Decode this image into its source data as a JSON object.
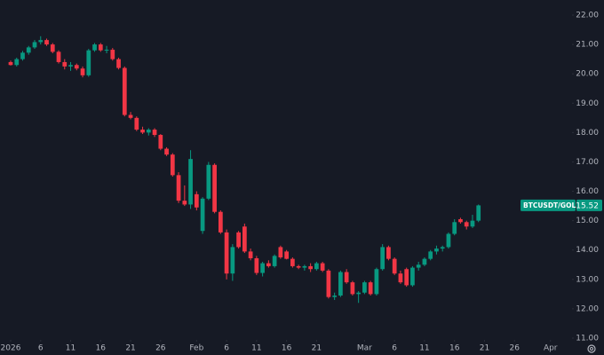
{
  "chart_data": {
    "type": "candlestick",
    "x": [
      "2026-01-01",
      "2026-01-02",
      "2026-01-03",
      "2026-01-04",
      "2026-01-05",
      "2026-01-06",
      "2026-01-07",
      "2026-01-08",
      "2026-01-09",
      "2026-01-10",
      "2026-01-11",
      "2026-01-12",
      "2026-01-13",
      "2026-01-14",
      "2026-01-15",
      "2026-01-16",
      "2026-01-17",
      "2026-01-18",
      "2026-01-19",
      "2026-01-20",
      "2026-01-21",
      "2026-01-22",
      "2026-01-23",
      "2026-01-24",
      "2026-01-25",
      "2026-01-26",
      "2026-01-27",
      "2026-01-28",
      "2026-01-29",
      "2026-01-30",
      "2026-01-31",
      "2026-02-01",
      "2026-02-02",
      "2026-02-03",
      "2026-02-04",
      "2026-02-05",
      "2026-02-06",
      "2026-02-07",
      "2026-02-08",
      "2026-02-09",
      "2026-02-10",
      "2026-02-11",
      "2026-02-12",
      "2026-02-13",
      "2026-02-14",
      "2026-02-15",
      "2026-02-16",
      "2026-02-17",
      "2026-02-18",
      "2026-02-19",
      "2026-02-20",
      "2026-02-21",
      "2026-02-22",
      "2026-02-23",
      "2026-02-24",
      "2026-02-25",
      "2026-02-26",
      "2026-02-27",
      "2026-02-28",
      "2026-03-01",
      "2026-03-02",
      "2026-03-03",
      "2026-03-04",
      "2026-03-05",
      "2026-03-06",
      "2026-03-07",
      "2026-03-08",
      "2026-03-09",
      "2026-03-10",
      "2026-03-11",
      "2026-03-12",
      "2026-03-13",
      "2026-03-14",
      "2026-03-15",
      "2026-03-16",
      "2026-03-17",
      "2026-03-18",
      "2026-03-19",
      "2026-03-20"
    ],
    "open": [
      20.4,
      20.3,
      20.5,
      20.72,
      20.9,
      21.08,
      21.15,
      21.0,
      20.75,
      20.4,
      20.25,
      20.3,
      20.18,
      19.95,
      20.8,
      21.0,
      20.8,
      20.82,
      20.5,
      20.2,
      18.6,
      18.5,
      18.1,
      18.0,
      18.1,
      17.92,
      17.45,
      17.25,
      16.55,
      15.68,
      15.55,
      15.9,
      14.65,
      15.75,
      16.9,
      15.3,
      14.6,
      13.2,
      14.6,
      14.8,
      13.95,
      13.72,
      13.22,
      13.55,
      13.45,
      14.1,
      13.95,
      13.7,
      13.45,
      13.4,
      13.45,
      13.35,
      13.55,
      13.3,
      12.4,
      12.45,
      13.25,
      12.9,
      12.5,
      12.55,
      12.9,
      12.5,
      13.35,
      14.1,
      13.7,
      13.2,
      13.35,
      12.8,
      13.4,
      13.5,
      13.7,
      13.95,
      14.05,
      14.1,
      14.55,
      15.05,
      14.95,
      14.8,
      15.0
    ],
    "high": [
      20.45,
      20.55,
      20.78,
      20.95,
      21.15,
      21.28,
      21.2,
      21.05,
      20.8,
      20.5,
      20.4,
      20.35,
      20.25,
      20.85,
      21.05,
      21.05,
      20.95,
      20.88,
      20.55,
      20.25,
      18.7,
      18.55,
      18.2,
      18.15,
      18.15,
      17.95,
      17.5,
      17.3,
      16.65,
      16.2,
      17.4,
      16.0,
      15.8,
      17.0,
      16.95,
      15.35,
      14.7,
      14.2,
      14.65,
      14.9,
      14.05,
      13.8,
      13.6,
      13.65,
      13.85,
      14.15,
      14.0,
      13.75,
      13.5,
      13.5,
      13.55,
      13.6,
      13.6,
      13.35,
      12.55,
      13.3,
      13.35,
      12.95,
      12.6,
      12.95,
      12.95,
      13.4,
      14.2,
      14.15,
      13.75,
      13.3,
      13.4,
      13.45,
      13.6,
      13.75,
      14.0,
      14.15,
      14.15,
      14.6,
      15.05,
      15.1,
      15.0,
      15.2,
      15.55
    ],
    "low": [
      20.28,
      20.25,
      20.45,
      20.65,
      20.85,
      21.0,
      20.95,
      20.7,
      20.35,
      20.15,
      20.1,
      20.12,
      19.88,
      19.9,
      20.75,
      20.75,
      20.7,
      20.45,
      20.15,
      18.55,
      18.45,
      18.05,
      17.95,
      17.9,
      17.85,
      17.4,
      17.2,
      16.5,
      15.6,
      15.5,
      15.4,
      15.35,
      14.55,
      15.7,
      15.25,
      14.55,
      13.0,
      12.95,
      14.05,
      13.9,
      13.65,
      13.15,
      13.1,
      13.4,
      13.4,
      13.7,
      13.68,
      13.4,
      13.35,
      13.3,
      13.25,
      13.3,
      13.25,
      12.35,
      12.3,
      12.4,
      12.85,
      12.45,
      12.2,
      12.5,
      12.45,
      12.45,
      13.3,
      13.65,
      13.15,
      12.85,
      12.75,
      12.75,
      13.3,
      13.45,
      13.65,
      13.85,
      13.95,
      14.05,
      14.5,
      14.9,
      14.7,
      14.75,
      14.95
    ],
    "close": [
      20.3,
      20.5,
      20.72,
      20.9,
      21.08,
      21.15,
      21.0,
      20.75,
      20.4,
      20.25,
      20.3,
      20.18,
      19.95,
      20.8,
      21.0,
      20.8,
      20.82,
      20.5,
      20.2,
      18.6,
      18.5,
      18.1,
      18.0,
      18.1,
      17.92,
      17.45,
      17.25,
      16.55,
      15.68,
      15.55,
      17.1,
      15.45,
      15.75,
      16.9,
      15.3,
      14.6,
      13.2,
      14.1,
      14.1,
      13.95,
      13.72,
      13.22,
      13.55,
      13.45,
      13.8,
      13.75,
      13.7,
      13.45,
      13.4,
      13.45,
      13.35,
      13.55,
      13.3,
      12.4,
      12.45,
      13.25,
      12.9,
      12.5,
      12.55,
      12.9,
      12.5,
      13.35,
      14.1,
      13.7,
      13.2,
      12.9,
      12.8,
      13.4,
      13.5,
      13.7,
      13.95,
      14.05,
      14.1,
      14.55,
      14.95,
      14.95,
      14.8,
      15.0,
      15.52
    ],
    "up_color": "#089981",
    "down_color": "#f23645",
    "xlim": [
      "2026-01-01",
      "2026-04-04"
    ],
    "xticks": [
      {
        "value": "2026-01-01",
        "label": "2026"
      },
      {
        "value": "2026-01-06",
        "label": "6"
      },
      {
        "value": "2026-01-11",
        "label": "11"
      },
      {
        "value": "2026-01-16",
        "label": "16"
      },
      {
        "value": "2026-01-21",
        "label": "21"
      },
      {
        "value": "2026-01-26",
        "label": "26"
      },
      {
        "value": "2026-02-01",
        "label": "Feb"
      },
      {
        "value": "2026-02-06",
        "label": "6"
      },
      {
        "value": "2026-02-11",
        "label": "11"
      },
      {
        "value": "2026-02-16",
        "label": "16"
      },
      {
        "value": "2026-02-21",
        "label": "21"
      },
      {
        "value": "2026-03-01",
        "label": "Mar"
      },
      {
        "value": "2026-03-06",
        "label": "6"
      },
      {
        "value": "2026-03-11",
        "label": "11"
      },
      {
        "value": "2026-03-16",
        "label": "16"
      },
      {
        "value": "2026-03-21",
        "label": "21"
      },
      {
        "value": "2026-03-26",
        "label": "26"
      },
      {
        "value": "2026-04-01",
        "label": "Apr"
      }
    ],
    "ylim": [
      11,
      22
    ],
    "yticks": [
      {
        "value": 11,
        "label": "11.00"
      },
      {
        "value": 12,
        "label": "12.00"
      },
      {
        "value": 13,
        "label": "13.00"
      },
      {
        "value": 14,
        "label": "14.00"
      },
      {
        "value": 15,
        "label": "15.00"
      },
      {
        "value": 16,
        "label": "16.00"
      },
      {
        "value": 17,
        "label": "17.00"
      },
      {
        "value": 18,
        "label": "18.00"
      },
      {
        "value": 19,
        "label": "19.00"
      },
      {
        "value": 20,
        "label": "20.00"
      },
      {
        "value": 21,
        "label": "21.00"
      },
      {
        "value": 22,
        "label": "22.00"
      }
    ],
    "last_price": {
      "label": "BTCUSDT/GOLD",
      "value": 15.52,
      "color": "#089981"
    }
  }
}
